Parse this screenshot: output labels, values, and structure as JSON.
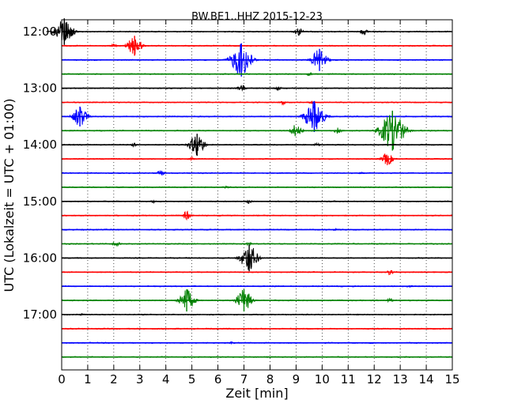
{
  "chart_data": {
    "type": "line",
    "title": "BW.BE1..HHZ 2015-12-23",
    "xlabel": "Zeit  [min]",
    "ylabel": "UTC (Lokalzeit = UTC + 01:00)",
    "xlim": [
      0,
      15
    ],
    "xticks": [
      0,
      1,
      2,
      3,
      4,
      5,
      6,
      7,
      8,
      9,
      10,
      11,
      12,
      13,
      14,
      15
    ],
    "x_tick_labels": [
      "0",
      "1",
      "2",
      "3",
      "4",
      "5",
      "6",
      "7",
      "8",
      "9",
      "10",
      "11",
      "12",
      "13",
      "14",
      "15"
    ],
    "y_tick_labels": [
      "12:00",
      "13:00",
      "14:00",
      "15:00",
      "16:00",
      "17:00"
    ],
    "grid": true,
    "trace_interval_min": 15,
    "start_time": "12:00",
    "series_colors": [
      "#000000",
      "#ff0000",
      "#0000ff",
      "#008000"
    ],
    "traces": [
      {
        "time": "12:00",
        "color": "#000000",
        "events": [
          {
            "t": 0.1,
            "amp": 1.2
          },
          {
            "t": 0.3,
            "amp": 0.3
          },
          {
            "t": 9.1,
            "amp": 0.4
          },
          {
            "t": 11.6,
            "amp": 0.3
          }
        ]
      },
      {
        "time": "12:15",
        "color": "#ff0000",
        "events": [
          {
            "t": 2.8,
            "amp": 0.9
          },
          {
            "t": 2.0,
            "amp": 0.15
          }
        ]
      },
      {
        "time": "12:30",
        "color": "#0000ff",
        "events": [
          {
            "t": 6.9,
            "amp": 1.5
          },
          {
            "t": 9.9,
            "amp": 1.0
          }
        ]
      },
      {
        "time": "12:45",
        "color": "#008000",
        "events": [
          {
            "t": 9.5,
            "amp": 0.15
          }
        ]
      },
      {
        "time": "13:00",
        "color": "#000000",
        "events": [
          {
            "t": 6.9,
            "amp": 0.35
          },
          {
            "t": 8.3,
            "amp": 0.2
          }
        ]
      },
      {
        "time": "13:15",
        "color": "#ff0000",
        "events": [
          {
            "t": 8.5,
            "amp": 0.2
          },
          {
            "t": 9.6,
            "amp": 0.15
          }
        ]
      },
      {
        "time": "13:30",
        "color": "#0000ff",
        "events": [
          {
            "t": 0.7,
            "amp": 0.9
          },
          {
            "t": 9.7,
            "amp": 1.4
          }
        ]
      },
      {
        "time": "13:45",
        "color": "#008000",
        "events": [
          {
            "t": 9.0,
            "amp": 0.6
          },
          {
            "t": 12.7,
            "amp": 1.8
          },
          {
            "t": 10.6,
            "amp": 0.3
          }
        ]
      },
      {
        "time": "14:00",
        "color": "#000000",
        "events": [
          {
            "t": 5.2,
            "amp": 1.0
          },
          {
            "t": 2.8,
            "amp": 0.2
          },
          {
            "t": 9.8,
            "amp": 0.15
          }
        ]
      },
      {
        "time": "14:15",
        "color": "#ff0000",
        "events": [
          {
            "t": 12.5,
            "amp": 0.6
          },
          {
            "t": 5.0,
            "amp": 0.15
          }
        ]
      },
      {
        "time": "14:30",
        "color": "#0000ff",
        "events": [
          {
            "t": 3.8,
            "amp": 0.3
          },
          {
            "t": 11.5,
            "amp": 0.1
          }
        ]
      },
      {
        "time": "14:45",
        "color": "#008000",
        "events": [
          {
            "t": 6.3,
            "amp": 0.15
          }
        ]
      },
      {
        "time": "15:00",
        "color": "#000000",
        "events": [
          {
            "t": 7.2,
            "amp": 0.2
          },
          {
            "t": 3.5,
            "amp": 0.15
          }
        ]
      },
      {
        "time": "15:15",
        "color": "#ff0000",
        "events": [
          {
            "t": 4.8,
            "amp": 0.4
          }
        ]
      },
      {
        "time": "15:30",
        "color": "#0000ff",
        "events": [
          {
            "t": 10.5,
            "amp": 0.1
          }
        ]
      },
      {
        "time": "15:45",
        "color": "#008000",
        "events": [
          {
            "t": 2.1,
            "amp": 0.3
          },
          {
            "t": 7.2,
            "amp": 0.15
          }
        ]
      },
      {
        "time": "16:00",
        "color": "#000000",
        "events": [
          {
            "t": 7.2,
            "amp": 1.2
          }
        ]
      },
      {
        "time": "16:15",
        "color": "#ff0000",
        "events": [
          {
            "t": 12.6,
            "amp": 0.25
          }
        ]
      },
      {
        "time": "16:30",
        "color": "#0000ff",
        "events": [
          {
            "t": 13.4,
            "amp": 0.1
          }
        ]
      },
      {
        "time": "16:45",
        "color": "#008000",
        "events": [
          {
            "t": 4.8,
            "amp": 1.0
          },
          {
            "t": 7.0,
            "amp": 1.0
          },
          {
            "t": 12.6,
            "amp": 0.2
          }
        ]
      },
      {
        "time": "17:00",
        "color": "#000000",
        "events": [
          {
            "t": 0.8,
            "amp": 0.1
          }
        ]
      },
      {
        "time": "17:15",
        "color": "#ff0000",
        "events": []
      },
      {
        "time": "17:30",
        "color": "#0000ff",
        "events": [
          {
            "t": 6.5,
            "amp": 0.1
          }
        ]
      },
      {
        "time": "17:45",
        "color": "#008000",
        "events": []
      }
    ]
  }
}
